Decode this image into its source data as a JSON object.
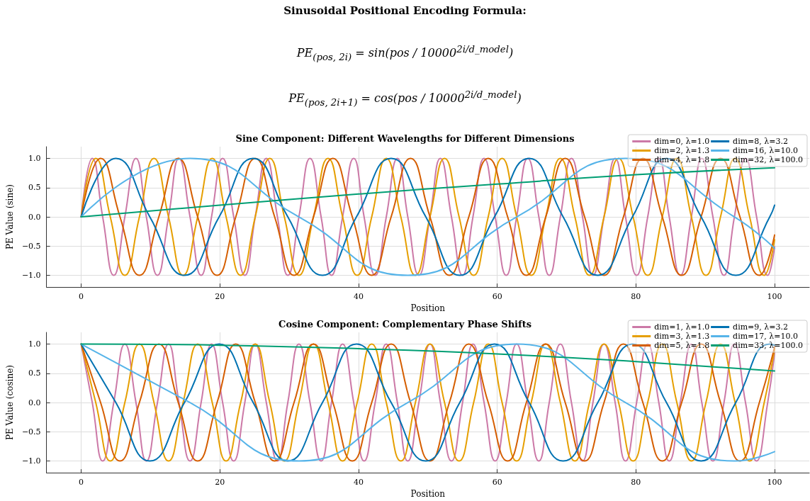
{
  "chart_data": [
    {
      "type": "line",
      "title": "Sine Component: Different Wavelengths for Different Dimensions",
      "xlabel": "Position",
      "ylabel": "PE Value (sine)",
      "annotations": [
        "Sinusoidal Positional Encoding Formula:",
        "PE$_{(pos, 2i)}$ = sin(pos / 10000$^{2i/d_model}$)",
        "PE$_{(pos, 2i+1)}$ = cos(pos / 10000$^{2i/d_model}$)"
      ],
      "xlim": [
        -5,
        105
      ],
      "xticks": [
        0,
        20,
        40,
        60,
        80,
        100
      ],
      "ylim": [
        -1.2,
        1.2
      ],
      "yticks": [
        {
          "value": -1,
          "label": "−1.0"
        },
        {
          "value": -0.5,
          "label": "−0.5"
        },
        {
          "value": 0,
          "label": "0.0"
        },
        {
          "value": 0.5,
          "label": "0.5"
        },
        {
          "value": 1,
          "label": "1.0"
        }
      ],
      "grid": true,
      "legend": "top right",
      "series": [
        {
          "name": "dim=0, λ=1.0",
          "color": "#cc79a7",
          "x": [
            0,
            1.6,
            3.1,
            4.7,
            6.3,
            7.9,
            9.4,
            11.0,
            12.6,
            14.1,
            15.7,
            17.3,
            18.8,
            20.4,
            22.0,
            23.6,
            25.1,
            26.7,
            28.3,
            29.8,
            31.4,
            33.0,
            34.6,
            36.1,
            37.7,
            39.3,
            40.8,
            42.4,
            44.0,
            45.6,
            47.1,
            48.7,
            50.3,
            51.8,
            53.4,
            55.0,
            56.5,
            58.1,
            59.7,
            61.3,
            62.8,
            64.4,
            66.0,
            67.5,
            69.1,
            70.7,
            72.3,
            73.8,
            75.4,
            77.0,
            78.5,
            80.1,
            81.7,
            83.3,
            84.8,
            86.4,
            88.0,
            89.5,
            91.1,
            92.7,
            94.2,
            95.8,
            97.4,
            99.0,
            100
          ],
          "values": [
            0,
            1,
            0,
            -1,
            0,
            1,
            0,
            -1,
            0,
            1,
            0,
            -1,
            0,
            1,
            0,
            -1,
            0,
            1,
            0,
            -1,
            0,
            1,
            0,
            -1,
            0,
            1,
            0,
            -1,
            0,
            1,
            0,
            -1,
            0,
            1,
            0,
            -1,
            0,
            1,
            0,
            -1,
            0,
            1,
            0,
            -1,
            0,
            1,
            0,
            -1,
            0,
            1,
            0,
            -1,
            0,
            1,
            0,
            -1,
            0,
            1,
            0,
            -1,
            0,
            1,
            0,
            -1,
            -0.51
          ]
        },
        {
          "name": "dim=2, λ=1.3",
          "color": "#e69f00",
          "x": [
            0,
            2.1,
            4.2,
            6.3,
            8.4,
            10.5,
            12.6,
            14.7,
            16.8,
            18.9,
            20.9,
            23.0,
            25.1,
            27.2,
            29.3,
            31.4,
            33.5,
            35.6,
            37.7,
            39.8,
            41.9,
            44.0,
            46.1,
            48.2,
            50.3,
            52.4,
            54.5,
            56.6,
            58.7,
            60.7,
            62.8,
            64.9,
            67.0,
            69.1,
            71.2,
            73.3,
            75.4,
            77.5,
            79.6,
            81.7,
            83.8,
            85.9,
            88.0,
            90.1,
            92.2,
            94.3,
            96.4,
            98.5,
            100
          ],
          "values": [
            0,
            1,
            0,
            -1,
            0,
            1,
            0,
            -1,
            0,
            1,
            0,
            -1,
            0,
            1,
            0,
            -1,
            0,
            1,
            0,
            -1,
            0,
            1,
            0,
            -1,
            0,
            1,
            0,
            -1,
            0,
            1,
            0,
            -1,
            0,
            1,
            0,
            -1,
            0,
            1,
            0,
            -1,
            0,
            1,
            0,
            -1,
            0,
            1,
            0,
            -1,
            -0.39
          ]
        },
        {
          "name": "dim=4, λ=1.8",
          "color": "#d55e00",
          "x": [
            0,
            2.8,
            5.6,
            8.4,
            11.2,
            14.0,
            16.8,
            19.6,
            22.3,
            25.1,
            27.9,
            30.7,
            33.5,
            36.3,
            39.1,
            41.9,
            44.7,
            47.5,
            50.3,
            53.1,
            55.9,
            58.7,
            61.5,
            64.2,
            67.0,
            69.8,
            72.6,
            75.4,
            78.2,
            81.0,
            83.8,
            86.6,
            89.4,
            92.2,
            95.0,
            97.8,
            100
          ],
          "values": [
            0,
            1,
            0,
            -1,
            0,
            1,
            0,
            -1,
            0,
            1,
            0,
            -1,
            0,
            1,
            0,
            -1,
            0,
            1,
            0,
            -1,
            0,
            1,
            0,
            -1,
            0,
            1,
            0,
            -1,
            0,
            1,
            0,
            -1,
            0,
            1,
            0,
            -1,
            -0.31
          ]
        },
        {
          "name": "dim=8, λ=3.2",
          "color": "#0072b2",
          "x": [
            0,
            5.0,
            9.9,
            14.9,
            19.9,
            24.8,
            29.8,
            34.8,
            39.7,
            44.7,
            49.7,
            54.6,
            59.6,
            64.6,
            69.5,
            74.5,
            79.5,
            84.4,
            89.4,
            94.4,
            99.3,
            100
          ],
          "values": [
            0,
            1,
            0,
            -1,
            0,
            1,
            0,
            -1,
            0,
            1,
            0,
            -1,
            0,
            1,
            0,
            -1,
            0,
            1,
            0,
            -1,
            0,
            0.2
          ]
        },
        {
          "name": "dim=16, λ=10.0",
          "color": "#56b4e9",
          "x": [
            0,
            15.7,
            31.4,
            47.1,
            62.8,
            78.5,
            94.2,
            100
          ],
          "values": [
            0,
            1,
            0,
            -1,
            0,
            1,
            0,
            -0.54
          ]
        },
        {
          "name": "dim=32, λ=100.0",
          "color": "#009e73",
          "x": [
            0,
            20,
            40,
            60,
            80,
            100
          ],
          "values": [
            0,
            0.2,
            0.39,
            0.56,
            0.72,
            0.84
          ]
        }
      ]
    },
    {
      "type": "line",
      "title": "Cosine Component: Complementary Phase Shifts",
      "xlabel": "Position",
      "ylabel": "PE Value (cosine)",
      "xlim": [
        -5,
        105
      ],
      "xticks": [
        0,
        20,
        40,
        60,
        80,
        100
      ],
      "ylim": [
        -1.2,
        1.2
      ],
      "yticks": [
        {
          "value": -1,
          "label": "−1.0"
        },
        {
          "value": -0.5,
          "label": "−0.5"
        },
        {
          "value": 0,
          "label": "0.0"
        },
        {
          "value": 0.5,
          "label": "0.5"
        },
        {
          "value": 1,
          "label": "1.0"
        }
      ],
      "grid": true,
      "legend": "top right",
      "series": [
        {
          "name": "dim=1, λ=1.0",
          "color": "#cc79a7",
          "x": [
            0,
            1.6,
            3.1,
            4.7,
            6.3,
            7.9,
            9.4,
            11.0,
            12.6,
            14.1,
            15.7,
            17.3,
            18.8,
            20.4,
            22.0,
            23.6,
            25.1,
            26.7,
            28.3,
            29.8,
            31.4,
            33.0,
            34.6,
            36.1,
            37.7,
            39.3,
            40.8,
            42.4,
            44.0,
            45.6,
            47.1,
            48.7,
            50.3,
            51.8,
            53.4,
            55.0,
            56.5,
            58.1,
            59.7,
            61.3,
            62.8,
            64.4,
            66.0,
            67.5,
            69.1,
            70.7,
            72.3,
            73.8,
            75.4,
            77.0,
            78.5,
            80.1,
            81.7,
            83.3,
            84.8,
            86.4,
            88.0,
            89.5,
            91.1,
            92.7,
            94.2,
            95.8,
            97.4,
            99.0,
            100
          ],
          "values": [
            1,
            0,
            -1,
            0,
            1,
            0,
            -1,
            0,
            1,
            0,
            -1,
            0,
            1,
            0,
            -1,
            0,
            1,
            0,
            -1,
            0,
            1,
            0,
            -1,
            0,
            1,
            0,
            -1,
            0,
            1,
            0,
            -1,
            0,
            1,
            0,
            -1,
            0,
            1,
            0,
            -1,
            0,
            1,
            0,
            -1,
            0,
            1,
            0,
            -1,
            0,
            1,
            0,
            -1,
            0,
            1,
            0,
            -1,
            0,
            1,
            0,
            -1,
            0,
            1,
            0,
            -1,
            0,
            0.86
          ]
        },
        {
          "name": "dim=3, λ=1.3",
          "color": "#e69f00",
          "x": [
            0,
            2.1,
            4.2,
            6.3,
            8.4,
            10.5,
            12.6,
            14.7,
            16.8,
            18.9,
            20.9,
            23.0,
            25.1,
            27.2,
            29.3,
            31.4,
            33.5,
            35.6,
            37.7,
            39.8,
            41.9,
            44.0,
            46.1,
            48.2,
            50.3,
            52.4,
            54.5,
            56.6,
            58.7,
            60.7,
            62.8,
            64.9,
            67.0,
            69.1,
            71.2,
            73.3,
            75.4,
            77.5,
            79.6,
            81.7,
            83.8,
            85.9,
            88.0,
            90.1,
            92.2,
            94.3,
            96.4,
            98.5,
            100
          ],
          "values": [
            1,
            0,
            -1,
            0,
            1,
            0,
            -1,
            0,
            1,
            0,
            -1,
            0,
            1,
            0,
            -1,
            0,
            1,
            0,
            -1,
            0,
            1,
            0,
            -1,
            0,
            1,
            0,
            -1,
            0,
            1,
            0,
            -1,
            0,
            1,
            0,
            -1,
            0,
            1,
            0,
            -1,
            0,
            1,
            0,
            -1,
            0,
            1,
            0,
            -1,
            0,
            0.92
          ]
        },
        {
          "name": "dim=5, λ=1.8",
          "color": "#d55e00",
          "x": [
            0,
            2.8,
            5.6,
            8.4,
            11.2,
            14.0,
            16.8,
            19.6,
            22.3,
            25.1,
            27.9,
            30.7,
            33.5,
            36.3,
            39.1,
            41.9,
            44.7,
            47.5,
            50.3,
            53.1,
            55.9,
            58.7,
            61.5,
            64.2,
            67.0,
            69.8,
            72.6,
            75.4,
            78.2,
            81.0,
            83.8,
            86.6,
            89.4,
            92.2,
            95.0,
            97.8,
            100
          ],
          "values": [
            1,
            0,
            -1,
            0,
            1,
            0,
            -1,
            0,
            1,
            0,
            -1,
            0,
            1,
            0,
            -1,
            0,
            1,
            0,
            -1,
            0,
            1,
            0,
            -1,
            0,
            1,
            0,
            -1,
            0,
            1,
            0,
            -1,
            0,
            1,
            0,
            -1,
            0,
            0.95
          ]
        },
        {
          "name": "dim=9, λ=3.2",
          "color": "#0072b2",
          "x": [
            0,
            5.0,
            9.9,
            14.9,
            19.9,
            24.8,
            29.8,
            34.8,
            39.7,
            44.7,
            49.7,
            54.6,
            59.6,
            64.6,
            69.5,
            74.5,
            79.5,
            84.4,
            89.4,
            94.4,
            99.3,
            100
          ],
          "values": [
            1,
            0,
            -1,
            0,
            1,
            0,
            -1,
            0,
            1,
            0,
            -1,
            0,
            1,
            0,
            -1,
            0,
            1,
            0,
            -1,
            0,
            1,
            0.98
          ]
        },
        {
          "name": "dim=17, λ=10.0",
          "color": "#56b4e9",
          "x": [
            0,
            15.7,
            31.4,
            47.1,
            62.8,
            78.5,
            94.2,
            100
          ],
          "values": [
            1,
            0,
            -1,
            0,
            1,
            0,
            -1,
            -0.84
          ]
        },
        {
          "name": "dim=33, λ=100.0",
          "color": "#009e73",
          "x": [
            0,
            20,
            40,
            60,
            80,
            100
          ],
          "values": [
            1,
            0.98,
            0.92,
            0.83,
            0.7,
            0.54
          ]
        }
      ]
    }
  ]
}
